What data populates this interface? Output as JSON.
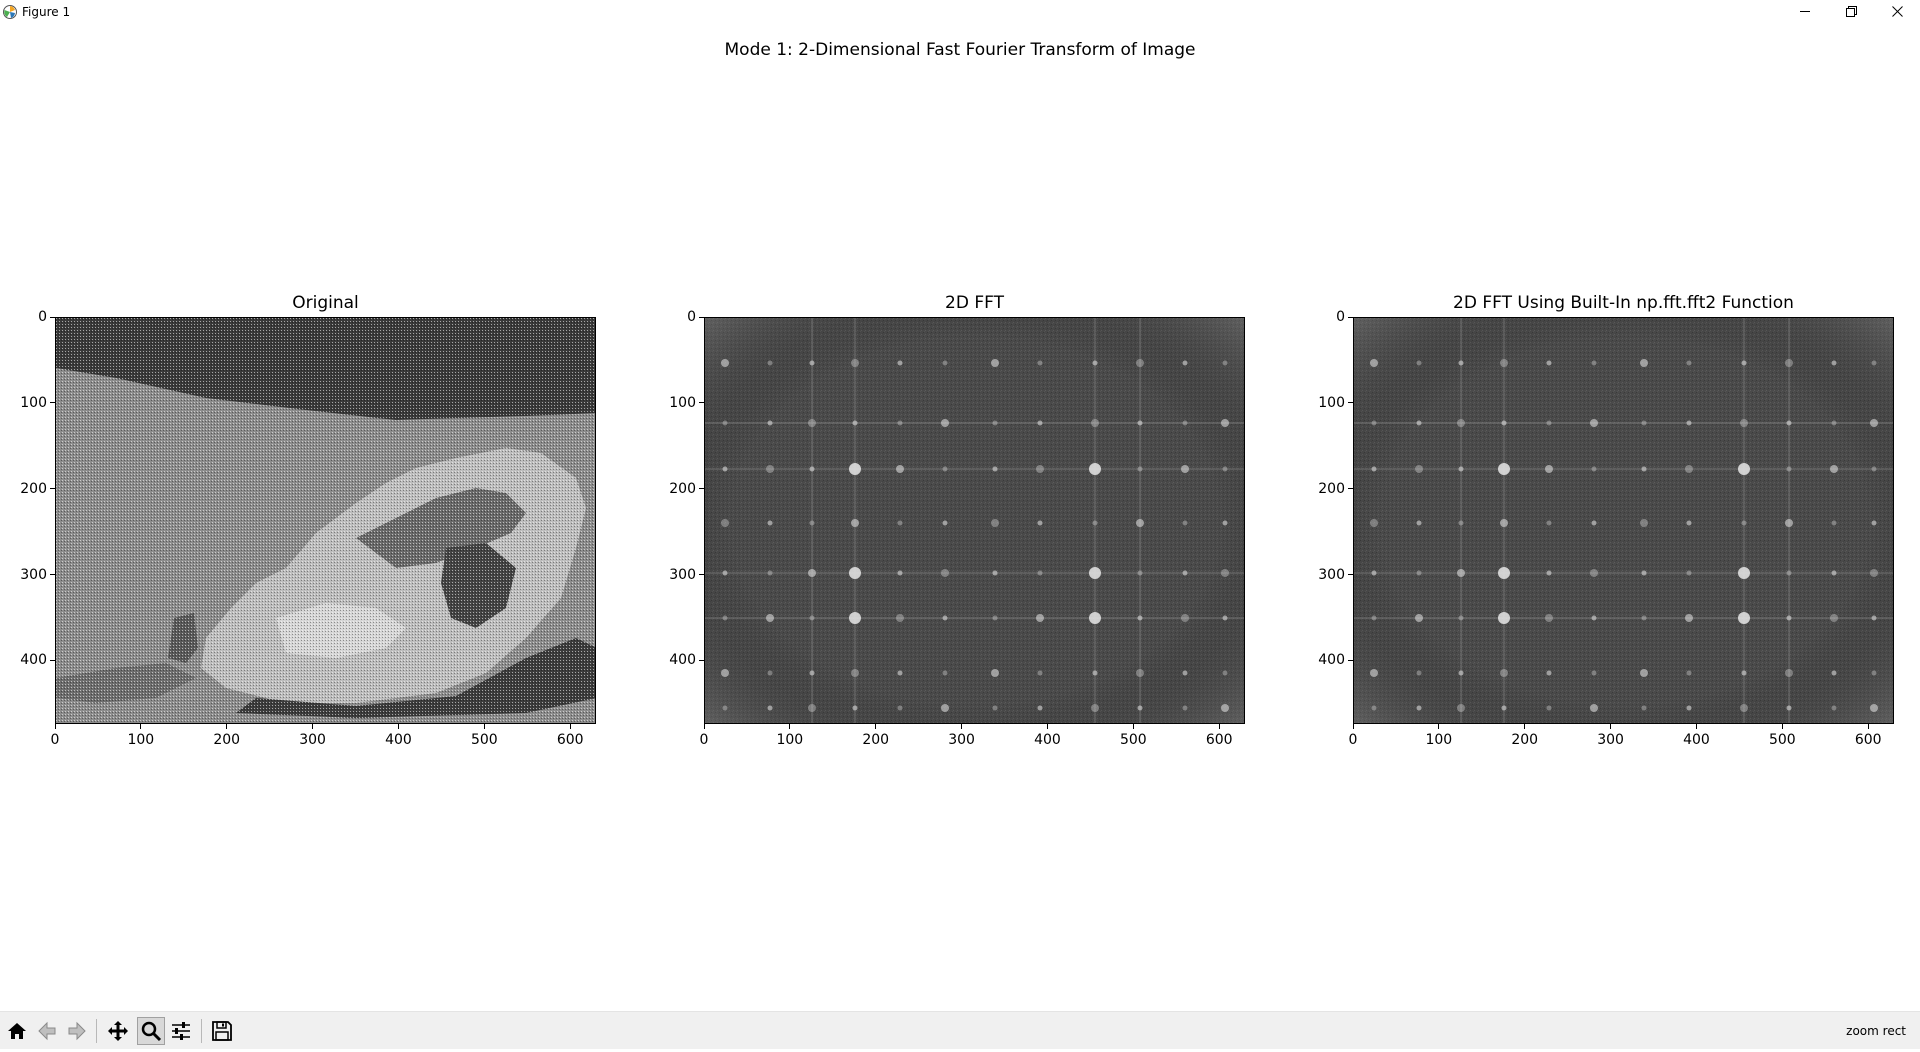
{
  "window": {
    "title": "Figure 1",
    "minimize_icon": "minimize-icon",
    "restore_icon": "restore-icon",
    "close_icon": "close-icon"
  },
  "figure": {
    "suptitle": "Mode 1: 2-Dimensional Fast Fourier Transform of Image",
    "axes": [
      {
        "title": "Original",
        "content": "grayscale-image",
        "xticks": [
          "0",
          "100",
          "200",
          "300",
          "400",
          "500",
          "600"
        ],
        "yticks": [
          "0",
          "100",
          "200",
          "300",
          "400"
        ],
        "xlim": [
          0,
          630
        ],
        "ylim": [
          474,
          0
        ]
      },
      {
        "title": "2D FFT",
        "content": "fft-spectrum",
        "xticks": [
          "0",
          "100",
          "200",
          "300",
          "400",
          "500",
          "600"
        ],
        "yticks": [
          "0",
          "100",
          "200",
          "300",
          "400"
        ],
        "xlim": [
          0,
          630
        ],
        "ylim": [
          474,
          0
        ]
      },
      {
        "title": "2D FFT Using Built-In np.fft.fft2 Function",
        "content": "fft-spectrum",
        "xticks": [
          "0",
          "100",
          "200",
          "300",
          "400",
          "500",
          "600"
        ],
        "yticks": [
          "0",
          "100",
          "200",
          "300",
          "400"
        ],
        "xlim": [
          0,
          630
        ],
        "ylim": [
          474,
          0
        ]
      }
    ]
  },
  "toolbar": {
    "buttons": [
      {
        "name": "home-button",
        "icon": "home-icon",
        "active": false
      },
      {
        "name": "back-button",
        "icon": "arrow-left-icon",
        "active": false
      },
      {
        "name": "forward-button",
        "icon": "arrow-right-icon",
        "active": false
      },
      {
        "name": "pan-button",
        "icon": "move-icon",
        "active": false
      },
      {
        "name": "zoom-button",
        "icon": "magnifier-icon",
        "active": true
      },
      {
        "name": "configure-subplots-button",
        "icon": "sliders-icon",
        "active": false
      },
      {
        "name": "save-button",
        "icon": "floppy-disk-icon",
        "active": false
      }
    ],
    "status": "zoom rect"
  },
  "colors": {
    "background": "#ffffff",
    "toolbar": "#f0f0f0",
    "image_dark": "#2e2e2e",
    "image_light": "#d8d8d8"
  }
}
